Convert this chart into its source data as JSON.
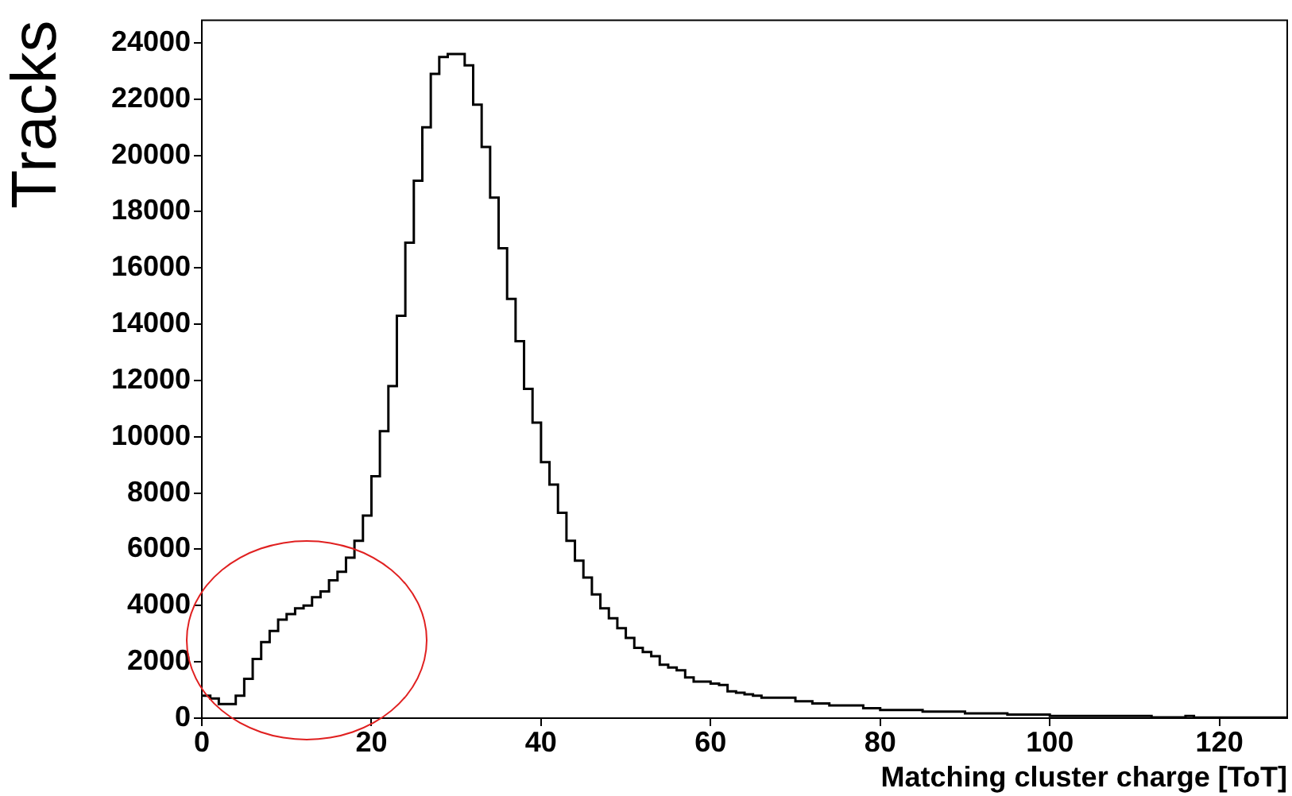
{
  "chart_data": {
    "type": "histogram",
    "xlabel": "Matching cluster charge [ToT]",
    "ylabel": "Tracks",
    "bins": [
      0,
      1,
      2,
      3,
      4,
      5,
      6,
      7,
      8,
      9,
      10,
      11,
      12,
      13,
      14,
      15,
      16,
      17,
      18,
      19,
      20,
      21,
      22,
      23,
      24,
      25,
      26,
      27,
      28,
      29,
      30,
      31,
      32,
      33,
      34,
      35,
      36,
      37,
      38,
      39,
      40,
      41,
      42,
      43,
      44,
      45,
      46,
      47,
      48,
      49,
      50,
      51,
      52,
      53,
      54,
      55,
      56,
      57,
      58,
      59,
      60,
      61,
      62,
      63,
      64,
      65,
      66,
      67,
      68,
      69,
      70,
      71,
      72,
      73,
      74,
      75,
      76,
      77,
      78,
      79,
      80,
      81,
      82,
      83,
      84,
      85,
      86,
      87,
      88,
      89,
      90,
      91,
      92,
      93,
      94,
      95,
      96,
      97,
      98,
      99,
      100,
      101,
      102,
      103,
      104,
      105,
      106,
      107,
      108,
      109,
      110,
      111,
      112,
      113,
      114,
      115,
      116,
      117,
      118,
      119,
      120,
      121,
      122,
      123,
      124,
      125,
      126,
      127,
      128
    ],
    "values": [
      800,
      700,
      500,
      500,
      800,
      1400,
      2100,
      2700,
      3100,
      3500,
      3700,
      3900,
      4000,
      4300,
      4500,
      4900,
      5200,
      5700,
      6300,
      7200,
      8600,
      10200,
      11800,
      14300,
      16900,
      19100,
      21000,
      22900,
      23500,
      23600,
      23600,
      23200,
      21800,
      20300,
      18500,
      16700,
      14900,
      13400,
      11700,
      10500,
      9100,
      8300,
      7300,
      6300,
      5600,
      5000,
      4400,
      3900,
      3550,
      3200,
      2850,
      2500,
      2350,
      2200,
      1900,
      1800,
      1700,
      1450,
      1300,
      1300,
      1230,
      1180,
      950,
      900,
      850,
      800,
      730,
      730,
      730,
      730,
      600,
      600,
      520,
      520,
      450,
      450,
      450,
      450,
      350,
      350,
      290,
      290,
      290,
      290,
      290,
      230,
      230,
      230,
      230,
      230,
      170,
      170,
      170,
      170,
      170,
      130,
      130,
      130,
      130,
      130,
      80,
      80,
      80,
      80,
      80,
      80,
      80,
      80,
      80,
      80,
      80,
      80,
      30,
      30,
      30,
      30,
      80,
      20,
      20,
      20,
      20,
      20,
      20,
      20,
      20,
      20,
      20,
      20
    ],
    "color": "#000000",
    "xlim": [
      0,
      128
    ],
    "xticks": [
      0,
      20,
      40,
      60,
      80,
      100,
      120
    ],
    "ylim": [
      0,
      24800
    ],
    "yticks": [
      0,
      2000,
      4000,
      6000,
      8000,
      10000,
      12000,
      14000,
      16000,
      18000,
      20000,
      22000,
      24000
    ],
    "grid": false,
    "legend": false
  }
}
